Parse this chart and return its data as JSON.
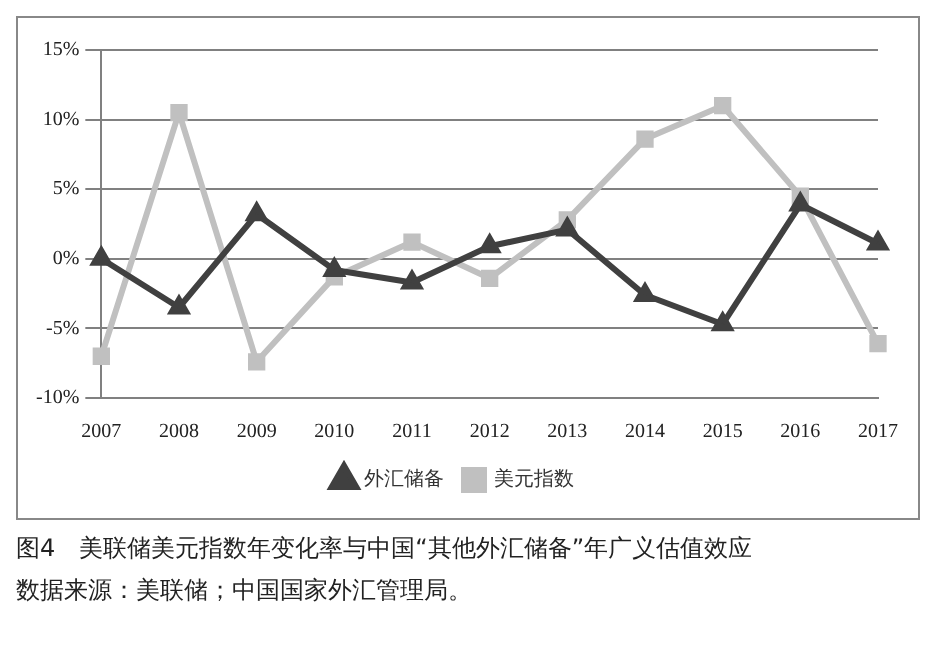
{
  "chart_data": {
    "type": "line",
    "title": "图4　美联储美元指数年变化率与中国“其他外汇储备”年广义估值效应",
    "annotations": [
      "数据来源：美联储；中国国家外汇管理局。"
    ],
    "categories": [
      "2007",
      "2008",
      "2009",
      "2010",
      "2011",
      "2012",
      "2013",
      "2014",
      "2015",
      "2016",
      "2017"
    ],
    "series": [
      {
        "name": "外汇储备",
        "color": "#404040",
        "marker": "triangle",
        "values": [
          0,
          -3.5,
          3.2,
          -0.8,
          -1.7,
          0.9,
          2.1,
          -2.6,
          -4.7,
          3.9,
          1.1
        ]
      },
      {
        "name": "美元指数",
        "color": "#c0c0c0",
        "marker": "square",
        "values": [
          -7.0,
          10.5,
          -7.4,
          -1.3,
          1.2,
          -1.4,
          2.8,
          8.6,
          11.0,
          4.5,
          -6.1
        ]
      }
    ],
    "ylim": [
      -10,
      15
    ],
    "yticks": [
      {
        "value": -10,
        "label": "-10%"
      },
      {
        "value": -5,
        "label": "-5%"
      },
      {
        "value": 0,
        "label": "0%"
      },
      {
        "value": 5,
        "label": "5%"
      },
      {
        "value": 10,
        "label": "10%"
      },
      {
        "value": 15,
        "label": "15%"
      }
    ],
    "grid": "y",
    "legend": "bottom",
    "line_style": "solid"
  }
}
